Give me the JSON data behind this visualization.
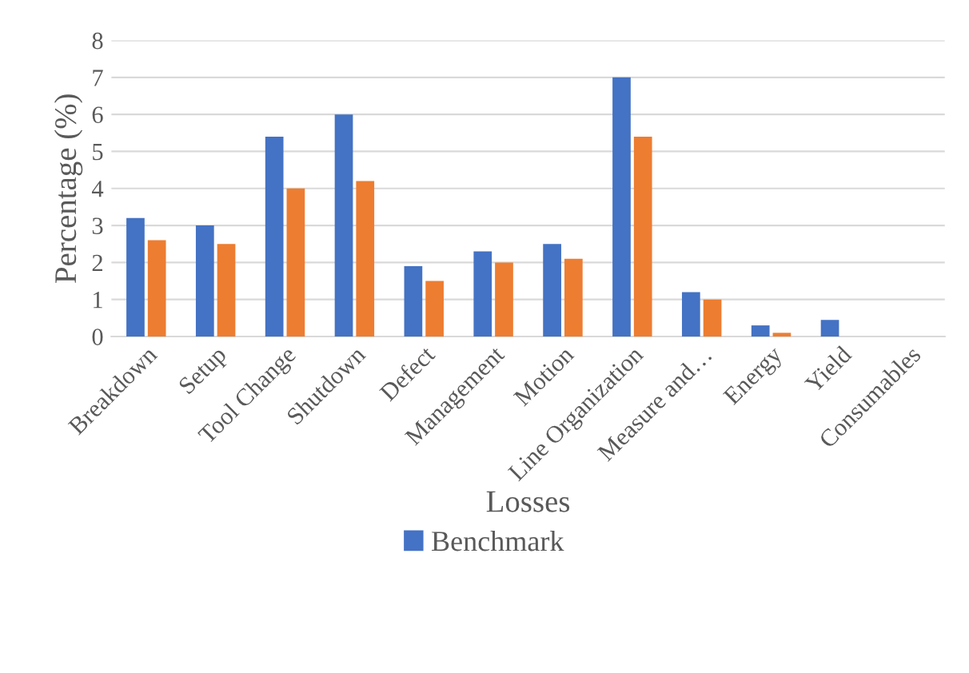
{
  "chart_data": {
    "type": "bar",
    "xlabel": "Losses",
    "ylabel": "Percentage (%)",
    "categories": [
      "Breakdown",
      "Setup",
      "Tool Change",
      "Shutdown",
      "Defect",
      "Management",
      "Motion",
      "Line Organization",
      "Measure and…",
      "Energy",
      "Yield",
      "Consumables"
    ],
    "series": [
      {
        "name": "Benchmark",
        "color": "#4472c4",
        "values": [
          3.2,
          3.0,
          5.4,
          6.0,
          1.9,
          2.3,
          2.5,
          7.0,
          1.2,
          0.3,
          0.45,
          0
        ]
      },
      {
        "color": "#ed7d31",
        "values": [
          2.6,
          2.5,
          4.0,
          4.2,
          1.5,
          2.0,
          2.1,
          5.4,
          1.0,
          0.1,
          0,
          0
        ]
      }
    ],
    "ylim": [
      0,
      8
    ],
    "yticks": [
      0,
      1,
      2,
      3,
      4,
      5,
      6,
      7,
      8
    ],
    "grid": "y",
    "legend": "bottom"
  }
}
